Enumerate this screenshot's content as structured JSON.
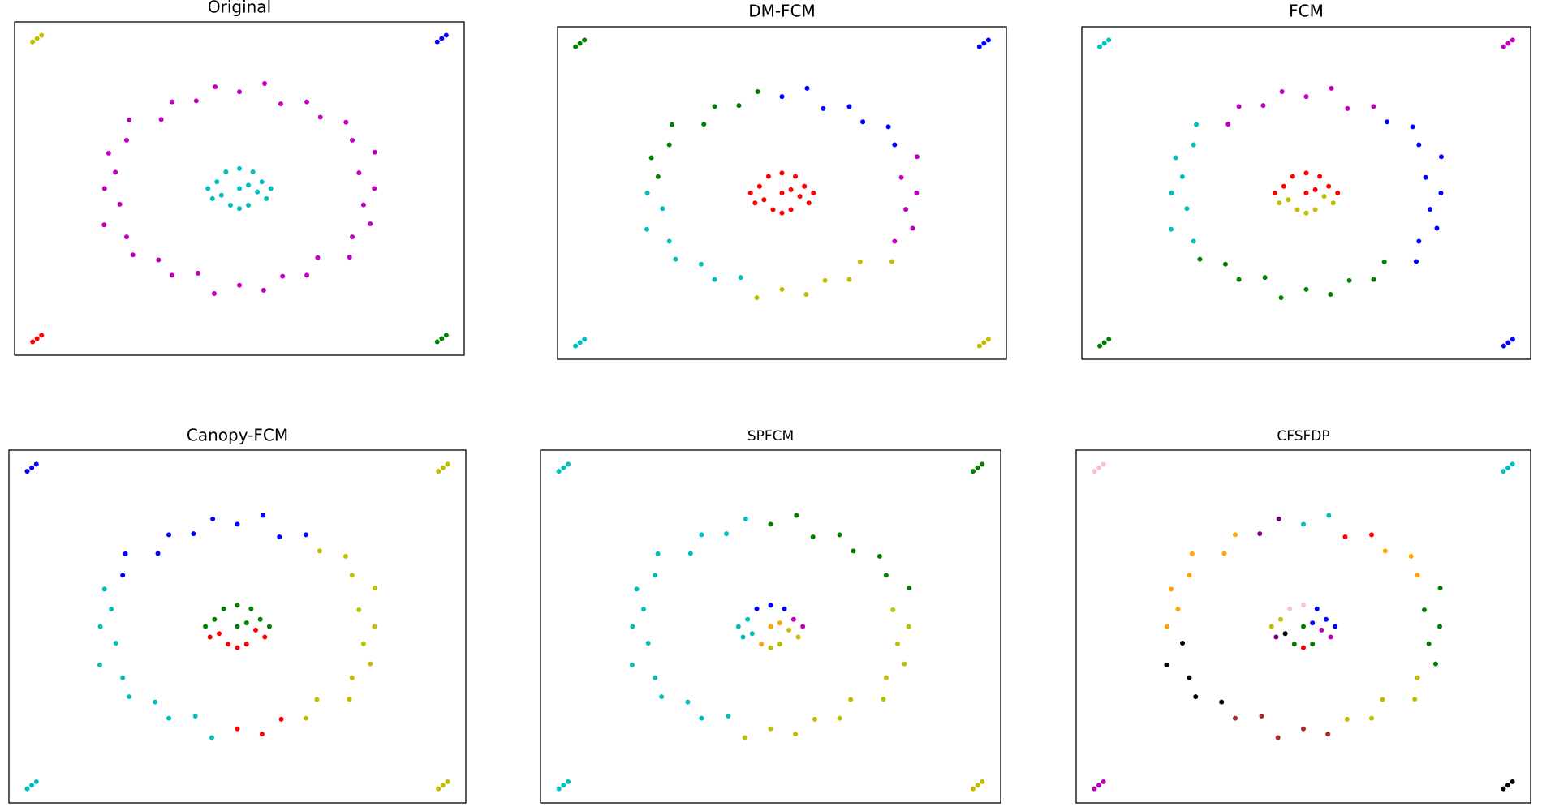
{
  "chart_data": [
    {
      "type": "scatter",
      "title": "Original",
      "xlim": [
        0,
        100
      ],
      "ylim": [
        0,
        100
      ],
      "series": [
        {
          "color": "#bf00bf",
          "x": [
            80,
            76.6,
            80.1,
            75.1,
            73.7,
            68,
            65,
            59.2,
            55.6,
            50,
            44.6,
            40.4,
            35,
            32.6,
            25.5,
            24.9,
            20.9,
            22.4,
            20,
            23.4,
            19.9,
            24.9,
            26.3,
            32,
            35,
            40.8,
            44.4,
            50,
            55.4,
            59.6,
            65,
            67.4,
            74.5,
            75.1,
            79.1,
            77.6
          ],
          "y": [
            50,
            54.7,
            60.9,
            64.5,
            69.9,
            71.4,
            76,
            75.4,
            81.5,
            79,
            80.5,
            76.3,
            76,
            70.7,
            70.6,
            64.5,
            60.6,
            54.9,
            50,
            45.3,
            39.1,
            35.5,
            30.1,
            28.6,
            24,
            24.6,
            18.5,
            21,
            19.5,
            23.7,
            24,
            29.3,
            29.4,
            35.5,
            39.4,
            45.1
          ]
        },
        {
          "color": "#00bfbf",
          "x": [
            50,
            45,
            55,
            47,
            53,
            44,
            56,
            48,
            52,
            50,
            43,
            57,
            46,
            54,
            50,
            52
          ],
          "y": [
            50,
            52,
            52,
            55,
            55,
            47,
            47,
            45,
            45,
            56,
            50,
            50,
            48,
            49,
            44,
            51
          ]
        },
        {
          "color": "#bfbf00",
          "x": [
            4,
            5,
            6
          ],
          "y": [
            94,
            95,
            96
          ]
        },
        {
          "color": "#0000ff",
          "x": [
            94,
            95,
            96
          ],
          "y": [
            94,
            95,
            96
          ]
        },
        {
          "color": "#ff0000",
          "x": [
            4,
            5,
            6
          ],
          "y": [
            4,
            5,
            6
          ]
        },
        {
          "color": "#008000",
          "x": [
            94,
            95,
            96
          ],
          "y": [
            4,
            5,
            6
          ]
        }
      ]
    },
    {
      "type": "scatter",
      "title": "DM-FCM",
      "xlim": [
        0,
        100
      ],
      "ylim": [
        0,
        100
      ],
      "series": [
        {
          "color": "#008000",
          "x": [
            44.6,
            40.4,
            35,
            32.6,
            25.5,
            24.9,
            20.9,
            22.4,
            4,
            5,
            6
          ],
          "y": [
            80.5,
            76.3,
            76,
            70.7,
            70.6,
            64.5,
            60.6,
            54.9,
            94,
            95,
            96
          ]
        },
        {
          "color": "#0000ff",
          "x": [
            75.1,
            73.7,
            68,
            65,
            59.2,
            55.6,
            50,
            94,
            95,
            96
          ],
          "y": [
            64.5,
            69.9,
            71.4,
            76,
            75.4,
            81.5,
            79,
            94,
            95,
            96
          ]
        },
        {
          "color": "#bf00bf",
          "x": [
            75.1,
            79.1,
            77.6,
            80,
            76.6,
            80.1
          ],
          "y": [
            35.5,
            39.4,
            45.1,
            50,
            54.7,
            60.9
          ]
        },
        {
          "color": "#00bfbf",
          "x": [
            20,
            23.4,
            19.9,
            24.9,
            26.3,
            32,
            35,
            40.8,
            4,
            5,
            6
          ],
          "y": [
            50,
            45.3,
            39.1,
            35.5,
            30.1,
            28.6,
            24,
            24.6,
            4,
            5,
            6
          ]
        },
        {
          "color": "#bfbf00",
          "x": [
            44.4,
            50,
            55.4,
            59.6,
            65,
            67.4,
            74.5,
            94,
            95,
            96
          ],
          "y": [
            18.5,
            21,
            19.5,
            23.7,
            24,
            29.3,
            29.4,
            4,
            5,
            6
          ]
        },
        {
          "color": "#ff0000",
          "x": [
            50,
            45,
            55,
            47,
            53,
            44,
            56,
            48,
            52,
            50,
            43,
            57,
            46,
            54,
            50,
            52
          ],
          "y": [
            50,
            52,
            52,
            55,
            55,
            47,
            47,
            45,
            45,
            56,
            50,
            50,
            48,
            49,
            44,
            51
          ]
        }
      ]
    },
    {
      "type": "scatter",
      "title": "FCM",
      "xlim": [
        0,
        100
      ],
      "ylim": [
        0,
        100
      ],
      "series": [
        {
          "color": "#bf00bf",
          "x": [
            65,
            59.2,
            55.6,
            50,
            44.6,
            40.4,
            35,
            32.6,
            94,
            95,
            96
          ],
          "y": [
            76,
            75.4,
            81.5,
            79,
            80.5,
            76.3,
            76,
            70.7,
            94,
            95,
            96
          ]
        },
        {
          "color": "#00bfbf",
          "x": [
            25.5,
            24.9,
            20.9,
            22.4,
            20,
            23.4,
            19.9,
            24.9,
            4,
            5,
            6
          ],
          "y": [
            70.6,
            64.5,
            60.6,
            54.9,
            50,
            45.3,
            39.1,
            35.5,
            94,
            95,
            96
          ]
        },
        {
          "color": "#008000",
          "x": [
            26.3,
            32,
            35,
            40.8,
            44.4,
            50,
            55.4,
            59.6,
            65,
            67.4,
            4,
            5,
            6
          ],
          "y": [
            30.1,
            28.6,
            24,
            24.6,
            18.5,
            21,
            19.5,
            23.7,
            24,
            29.3,
            4,
            5,
            6
          ]
        },
        {
          "color": "#0000ff",
          "x": [
            74.5,
            75.1,
            79.1,
            77.6,
            80,
            76.6,
            80.1,
            75.1,
            73.7,
            68,
            94,
            95,
            96
          ],
          "y": [
            29.4,
            35.5,
            39.4,
            45.1,
            50,
            54.7,
            60.9,
            64.5,
            69.9,
            71.4,
            4,
            5,
            6
          ]
        },
        {
          "color": "#ff0000",
          "x": [
            50,
            45,
            55,
            47,
            53,
            50,
            43,
            57,
            52
          ],
          "y": [
            50,
            52,
            52,
            55,
            55,
            56,
            50,
            50,
            51
          ]
        },
        {
          "color": "#bfbf00",
          "x": [
            44,
            56,
            48,
            52,
            46,
            54,
            50
          ],
          "y": [
            47,
            47,
            45,
            45,
            48,
            49,
            44
          ]
        }
      ]
    },
    {
      "type": "scatter",
      "title": "Canopy-FCM",
      "xlim": [
        0,
        100
      ],
      "ylim": [
        0,
        100
      ],
      "series": [
        {
          "color": "#0000ff",
          "x": [
            65,
            59.2,
            55.6,
            50,
            44.6,
            40.4,
            35,
            32.6,
            25.5,
            24.9,
            4,
            5,
            6
          ],
          "y": [
            76,
            75.4,
            81.5,
            79,
            80.5,
            76.3,
            76,
            70.7,
            70.6,
            64.5,
            94,
            95,
            96
          ]
        },
        {
          "color": "#00bfbf",
          "x": [
            20.9,
            22.4,
            20,
            23.4,
            19.9,
            24.9,
            26.3,
            32,
            35,
            40.8,
            44.4,
            4,
            5,
            6
          ],
          "y": [
            60.6,
            54.9,
            50,
            45.3,
            39.1,
            35.5,
            30.1,
            28.6,
            24,
            24.6,
            18.5,
            4,
            5,
            6
          ]
        },
        {
          "color": "#ff0000",
          "x": [
            50,
            55.4,
            59.6,
            44,
            56,
            48,
            52,
            46,
            54,
            50
          ],
          "y": [
            21,
            19.5,
            23.7,
            47,
            47,
            45,
            45,
            48,
            49,
            44
          ]
        },
        {
          "color": "#bfbf00",
          "x": [
            65,
            67.4,
            74.5,
            75.1,
            79.1,
            77.6,
            80,
            76.6,
            80.1,
            75.1,
            73.7,
            68,
            94,
            95,
            96,
            94,
            95,
            96
          ],
          "y": [
            24,
            29.3,
            29.4,
            35.5,
            39.4,
            45.1,
            50,
            54.7,
            60.9,
            64.5,
            69.9,
            71.4,
            94,
            95,
            96,
            4,
            5,
            6
          ]
        },
        {
          "color": "#008000",
          "x": [
            50,
            45,
            55,
            47,
            53,
            50,
            43,
            57,
            52
          ],
          "y": [
            50,
            52,
            52,
            55,
            55,
            56,
            50,
            50,
            51
          ]
        }
      ]
    },
    {
      "type": "scatter",
      "title": "SPFCM",
      "xlim": [
        0,
        100
      ],
      "ylim": [
        0,
        100
      ],
      "series": [
        {
          "color": "#008000",
          "x": [
            80.1,
            75.1,
            73.7,
            68,
            65,
            59.2,
            55.6,
            50,
            94,
            95,
            96
          ],
          "y": [
            60.9,
            64.5,
            69.9,
            71.4,
            76,
            75.4,
            81.5,
            79,
            94,
            95,
            96
          ]
        },
        {
          "color": "#00bfbf",
          "x": [
            44.6,
            40.4,
            35,
            32.6,
            25.5,
            24.9,
            20.9,
            22.4,
            20,
            23.4,
            19.9,
            24.9,
            26.3,
            32,
            35,
            40.8,
            4,
            5,
            6,
            4,
            5,
            6,
            45,
            44,
            43,
            46
          ],
          "y": [
            80.5,
            76.3,
            76,
            70.7,
            70.6,
            64.5,
            60.6,
            54.9,
            50,
            45.3,
            39.1,
            35.5,
            30.1,
            28.6,
            24,
            24.6,
            94,
            95,
            96,
            4,
            5,
            6,
            52,
            47,
            50,
            48
          ]
        },
        {
          "color": "#bfbf00",
          "x": [
            44.4,
            50,
            55.4,
            59.6,
            65,
            67.4,
            74.5,
            75.1,
            79.1,
            77.6,
            80,
            76.6,
            94,
            95,
            96,
            56,
            52,
            54,
            50
          ],
          "y": [
            18.5,
            21,
            19.5,
            23.7,
            24,
            29.3,
            29.4,
            35.5,
            39.4,
            45.1,
            50,
            54.7,
            4,
            5,
            6,
            47,
            45,
            49,
            44
          ]
        },
        {
          "color": "#0000ff",
          "x": [
            47,
            53,
            50
          ],
          "y": [
            55,
            55,
            56
          ]
        },
        {
          "color": "#bf00bf",
          "x": [
            55,
            57
          ],
          "y": [
            52,
            50
          ]
        },
        {
          "color": "#ffa500",
          "x": [
            50,
            52,
            48
          ],
          "y": [
            50,
            51,
            45
          ]
        }
      ]
    },
    {
      "type": "scatter",
      "title": "CFSFDP",
      "xlim": [
        0,
        100
      ],
      "ylim": [
        0,
        100
      ],
      "series": [
        {
          "color": "#800080",
          "x": [
            44.6,
            40.4,
            44
          ],
          "y": [
            80.5,
            76.3,
            47
          ]
        },
        {
          "color": "#00bfbf",
          "x": [
            55.6,
            50,
            94,
            95,
            96
          ],
          "y": [
            81.5,
            79,
            94,
            95,
            96
          ]
        },
        {
          "color": "#ff0000",
          "x": [
            65,
            59.2,
            50
          ],
          "y": [
            76,
            75.4,
            44
          ]
        },
        {
          "color": "#ffa500",
          "x": [
            75.1,
            73.7,
            68,
            35,
            32.6,
            25.5,
            24.9,
            20.9,
            22.4,
            20
          ],
          "y": [
            64.5,
            69.9,
            71.4,
            76,
            70.7,
            70.6,
            64.5,
            60.6,
            54.9,
            50
          ]
        },
        {
          "color": "#008000",
          "x": [
            79.1,
            77.6,
            80,
            76.6,
            80.1,
            50,
            48,
            52
          ],
          "y": [
            39.4,
            45.1,
            50,
            54.7,
            60.9,
            50,
            45,
            45
          ]
        },
        {
          "color": "#bfbf00",
          "x": [
            59.6,
            65,
            67.4,
            74.5,
            75.1,
            45,
            43
          ],
          "y": [
            23.7,
            24,
            29.3,
            29.4,
            35.5,
            52,
            50
          ]
        },
        {
          "color": "#a52a2a",
          "x": [
            35,
            40.8,
            44.4,
            50,
            55.4
          ],
          "y": [
            24,
            24.6,
            18.5,
            21,
            19.5
          ]
        },
        {
          "color": "#000000",
          "x": [
            23.4,
            19.9,
            24.9,
            26.3,
            32,
            94,
            95,
            96,
            46
          ],
          "y": [
            45.3,
            39.1,
            35.5,
            30.1,
            28.6,
            4,
            5,
            6,
            48
          ]
        },
        {
          "color": "#ffc0cb",
          "x": [
            4,
            5,
            6,
            47,
            50
          ],
          "y": [
            94,
            95,
            96,
            55,
            56
          ]
        },
        {
          "color": "#bf00bf",
          "x": [
            4,
            5,
            6,
            56,
            54
          ],
          "y": [
            4,
            5,
            6,
            47,
            49
          ]
        },
        {
          "color": "#0000ff",
          "x": [
            55,
            53,
            57,
            52
          ],
          "y": [
            52,
            55,
            50,
            51
          ]
        }
      ]
    }
  ]
}
